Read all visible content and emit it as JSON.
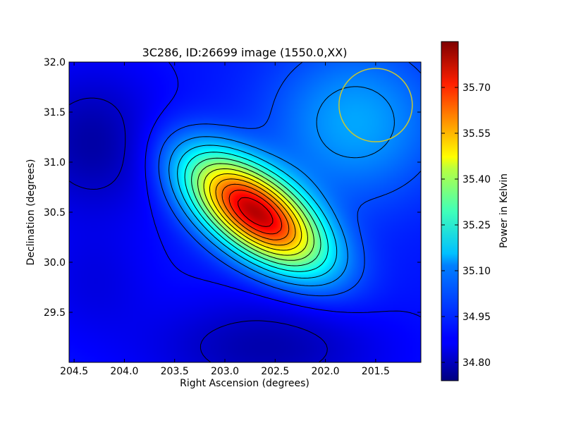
{
  "chart_data": {
    "type": "heatmap",
    "title": "3C286, ID:26699 image (1550.0,XX)",
    "xlabel": "Right Ascension (degrees)",
    "ylabel": "Declination (degrees)",
    "xlim": [
      204.55,
      201.05
    ],
    "ylim": [
      29.0,
      32.0
    ],
    "x_ticks": [
      204.5,
      204.0,
      203.5,
      203.0,
      202.5,
      202.0,
      201.5
    ],
    "x_tick_labels": [
      "204.5",
      "204.0",
      "203.5",
      "203.0",
      "202.5",
      "202.0",
      "201.5"
    ],
    "y_ticks": [
      29.5,
      30.0,
      30.5,
      31.0,
      31.5,
      32.0
    ],
    "y_tick_labels": [
      "29.5",
      "30.0",
      "30.5",
      "31.0",
      "31.5",
      "32.0"
    ],
    "colorbar": {
      "label": "Power in Kelvin",
      "range": [
        34.74,
        35.85
      ],
      "ticks": [
        34.8,
        34.95,
        35.1,
        35.25,
        35.4,
        35.55,
        35.7
      ],
      "tick_labels": [
        "34.80",
        "34.95",
        "35.10",
        "35.25",
        "35.40",
        "35.55",
        "35.70"
      ],
      "colormap": "jet"
    },
    "peak": {
      "ra": 202.7,
      "dec": 30.5,
      "value": 35.83
    },
    "beam_circle": {
      "ra": 201.5,
      "dec": 31.57,
      "color": "#c8c832"
    },
    "grid": false
  }
}
